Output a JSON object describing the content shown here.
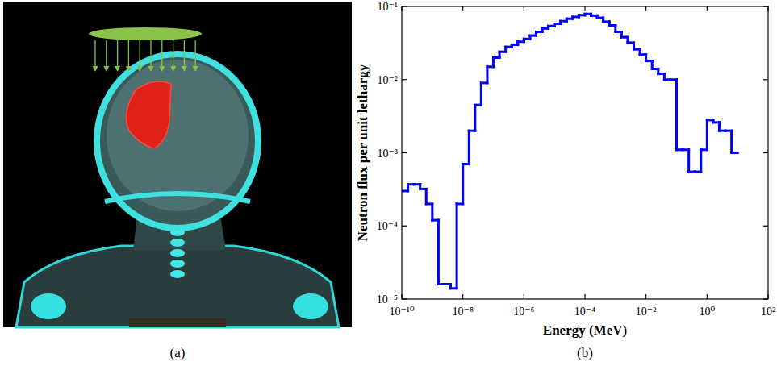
{
  "image_panel": {
    "panel_label": "(a)"
  },
  "chart_data": {
    "type": "step",
    "panel_label": "(b)",
    "x_label": "Energy (MeV)",
    "y_label": "Neutron flux per unit lethargy",
    "log": true,
    "grid": false,
    "color": "#0000ff",
    "xlim": [
      1e-10,
      100
    ],
    "ylim": [
      1e-05,
      0.1
    ],
    "xticks": [
      {
        "value": 1e-10,
        "label": "10⁻¹⁰"
      },
      {
        "value": 1e-08,
        "label": "10⁻⁸"
      },
      {
        "value": 1e-06,
        "label": "10⁻⁶"
      },
      {
        "value": 0.0001,
        "label": "10⁻⁴"
      },
      {
        "value": 0.01,
        "label": "10⁻²"
      },
      {
        "value": 1,
        "label": "10⁰"
      },
      {
        "value": 100,
        "label": "10²"
      }
    ],
    "yticks": [
      {
        "value": 1e-05,
        "label": "10⁻⁵"
      },
      {
        "value": 0.0001,
        "label": "10⁻⁴"
      },
      {
        "value": 0.001,
        "label": "10⁻³"
      },
      {
        "value": 0.01,
        "label": "10⁻²"
      },
      {
        "value": 0.1,
        "label": "10⁻¹"
      }
    ],
    "bins": [
      1e-10,
      1.585e-10,
      2.512e-10,
      3.981e-10,
      6.31e-10,
      1e-09,
      1.585e-09,
      2.512e-09,
      3.981e-09,
      6.31e-09,
      1e-08,
      1.585e-08,
      2.512e-08,
      3.981e-08,
      6.31e-08,
      1e-07,
      1.585e-07,
      2.512e-07,
      3.981e-07,
      6.31e-07,
      1e-06,
      1.585e-06,
      2.512e-06,
      3.981e-06,
      6.31e-06,
      1e-05,
      1.585e-05,
      2.512e-05,
      3.981e-05,
      6.31e-05,
      0.0001,
      0.0001585,
      0.0002512,
      0.0003981,
      0.000631,
      0.001,
      0.001585,
      0.002512,
      0.003981,
      0.00631,
      0.01,
      0.01585,
      0.02512,
      0.03981,
      0.0631,
      0.1,
      0.1585,
      0.2512,
      0.3981,
      0.631,
      1,
      1.585,
      2.512,
      3.981,
      6.31,
      10
    ],
    "values": [
      0.0003,
      0.00037,
      0.00037,
      0.00032,
      0.0002,
      0.00012,
      1.6e-05,
      1.6e-05,
      1.4e-05,
      0.0002,
      0.0007,
      0.002,
      0.0045,
      0.009,
      0.015,
      0.02,
      0.024,
      0.028,
      0.03,
      0.033,
      0.036,
      0.04,
      0.045,
      0.05,
      0.054,
      0.058,
      0.063,
      0.068,
      0.072,
      0.076,
      0.079,
      0.075,
      0.07,
      0.062,
      0.055,
      0.045,
      0.038,
      0.032,
      0.026,
      0.022,
      0.018,
      0.014,
      0.012,
      0.01,
      0.01,
      0.0011,
      0.0011,
      0.00055,
      0.00055,
      0.0011,
      0.0028,
      0.0026,
      0.002,
      0.002,
      0.001
    ]
  }
}
